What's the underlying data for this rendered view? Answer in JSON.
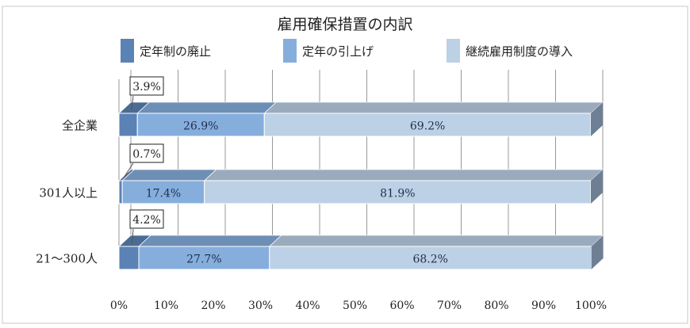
{
  "chart_data": {
    "type": "bar",
    "stacked": true,
    "orientation": "horizontal",
    "title": "雇用確保措置の内訳",
    "categories": [
      "全企業",
      "301人以上",
      "21〜300人"
    ],
    "series": [
      {
        "name": "定年制の廃止",
        "values": [
          3.9,
          0.7,
          4.2
        ],
        "color": "#5b82b5"
      },
      {
        "name": "定年の引上げ",
        "values": [
          26.9,
          17.4,
          27.7
        ],
        "color": "#86aedd"
      },
      {
        "name": "継続雇用制度の導入",
        "values": [
          69.2,
          81.9,
          68.2
        ],
        "color": "#bcd0e6"
      }
    ],
    "data_labels": [
      [
        "3.9%",
        "26.9%",
        "69.2%"
      ],
      [
        "0.7%",
        "17.4%",
        "81.9%"
      ],
      [
        "4.2%",
        "27.7%",
        "68.2%"
      ]
    ],
    "xlim": [
      0,
      100
    ],
    "xticks": [
      "0%",
      "10%",
      "20%",
      "30%",
      "40%",
      "50%",
      "60%",
      "70%",
      "80%",
      "90%",
      "100%"
    ],
    "grid": true,
    "legend": "top",
    "style": "3d"
  }
}
